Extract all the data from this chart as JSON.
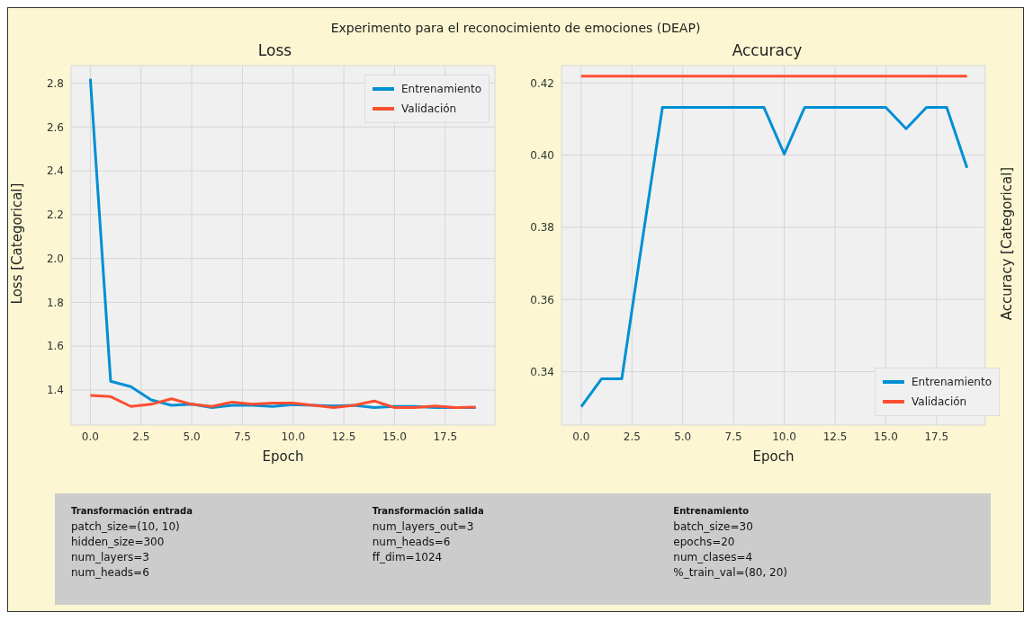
{
  "chart_data": [
    {
      "type": "other",
      "title": "Experimento para el reconocimiento de emociones (DEAP)"
    },
    {
      "type": "line",
      "title": "Loss",
      "xlabel": "Epoch",
      "ylabel": "Loss [Categorical]",
      "x": [
        0,
        1,
        2,
        3,
        4,
        5,
        6,
        7,
        8,
        9,
        10,
        11,
        12,
        13,
        14,
        15,
        16,
        17,
        18,
        19
      ],
      "series": [
        {
          "name": "Entrenamiento",
          "color": "#008fd5",
          "values": [
            2.82,
            1.44,
            1.415,
            1.355,
            1.33,
            1.335,
            1.32,
            1.33,
            1.33,
            1.325,
            1.333,
            1.33,
            1.327,
            1.33,
            1.32,
            1.325,
            1.325,
            1.32,
            1.32,
            1.32
          ]
        },
        {
          "name": "Validación",
          "color": "#fc4f30",
          "values": [
            1.375,
            1.37,
            1.325,
            1.335,
            1.36,
            1.335,
            1.325,
            1.345,
            1.335,
            1.34,
            1.34,
            1.33,
            1.32,
            1.33,
            1.35,
            1.32,
            1.32,
            1.327,
            1.32,
            1.322
          ]
        }
      ],
      "xlim": [
        -0.95,
        19.95
      ],
      "xticks": [
        {
          "value": 0,
          "label": "0.0"
        },
        2.5,
        {
          "value": 5,
          "label": "5.0"
        },
        7.5,
        {
          "value": 10,
          "label": "10.0"
        },
        12.5,
        {
          "value": 15,
          "label": "15.0"
        },
        17.5
      ],
      "ylim": [
        1.24,
        2.88
      ],
      "yticks": [
        1.4,
        1.6,
        1.8,
        {
          "value": 2,
          "label": "2.0"
        },
        2.2,
        2.4,
        2.6,
        2.8
      ],
      "grid": true,
      "legend": "top right",
      "marker": "none",
      "line_style": "solid"
    },
    {
      "type": "line",
      "title": "Accuracy",
      "xlabel": "Epoch",
      "ylabel": "Accuracy [Categorical]",
      "x": [
        0,
        1,
        2,
        3,
        4,
        5,
        6,
        7,
        8,
        9,
        10,
        11,
        12,
        13,
        14,
        15,
        16,
        17,
        18,
        19
      ],
      "series": [
        {
          "name": "Entrenamiento",
          "color": "#008fd5",
          "values": [
            0.3303,
            0.338,
            0.338,
            0.376,
            0.4132,
            0.4132,
            0.4132,
            0.4132,
            0.4132,
            0.4132,
            0.4003,
            0.4132,
            0.4132,
            0.4132,
            0.4132,
            0.4132,
            0.4073,
            0.4132,
            0.4132,
            0.3965
          ]
        },
        {
          "name": "Validación",
          "color": "#fc4f30",
          "values": [
            0.4219,
            0.4219,
            0.4219,
            0.4219,
            0.4219,
            0.4219,
            0.4219,
            0.4219,
            0.4219,
            0.4219,
            0.4219,
            0.4219,
            0.4219,
            0.4219,
            0.4219,
            0.4219,
            0.4219,
            0.4219,
            0.4219,
            0.4219
          ]
        }
      ],
      "xlim": [
        -0.97,
        19.9
      ],
      "xticks": [
        {
          "value": 0,
          "label": "0.0"
        },
        2.5,
        {
          "value": 5,
          "label": "5.0"
        },
        7.5,
        {
          "value": 10,
          "label": "10.0"
        },
        12.5,
        {
          "value": 15,
          "label": "15.0"
        },
        17.5
      ],
      "ylim": [
        0.3252,
        0.4248
      ],
      "yticks": [
        0.34,
        0.36,
        0.38,
        {
          "value": 0.4,
          "label": "0.40"
        },
        0.42
      ],
      "grid": true,
      "legend": "bottom right",
      "marker": "none",
      "line_style": "solid"
    },
    {
      "type": "other",
      "title": "Transformación entrada",
      "annotations": [
        "patch_size=(10, 10)",
        "hidden_size=300",
        "num_layers=3",
        "num_heads=6"
      ]
    },
    {
      "type": "other",
      "title": "Transformación salida",
      "annotations": [
        "num_layers_out=3",
        "num_heads=6",
        "ff_dim=1024"
      ]
    },
    {
      "type": "other",
      "title": "Entrenamiento",
      "annotations": [
        "batch_size=30",
        "epochs=20",
        "num_clases=4",
        "%_train_val=(80, 20)"
      ]
    }
  ]
}
